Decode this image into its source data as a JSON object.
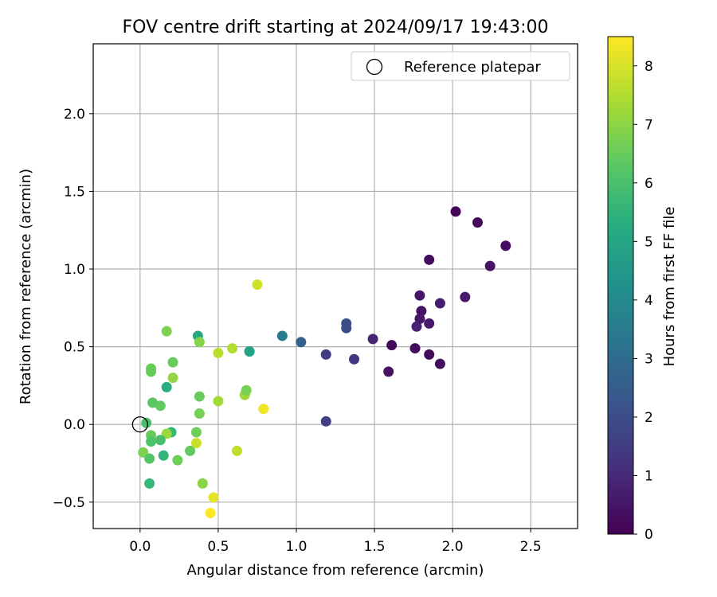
{
  "chart_data": {
    "type": "scatter",
    "title": "FOV centre drift starting at 2024/09/17 19:43:00",
    "xlabel": "Angular distance from reference (arcmin)",
    "ylabel": "Rotation from reference (arcmin)",
    "xlim": [
      -0.3,
      2.8
    ],
    "ylim": [
      -0.67,
      2.45
    ],
    "xticks": [
      0.0,
      0.5,
      1.0,
      1.5,
      2.0,
      2.5
    ],
    "xtick_labels": [
      "0.0",
      "0.5",
      "1.0",
      "1.5",
      "2.0",
      "2.5"
    ],
    "yticks": [
      -0.5,
      0.0,
      0.5,
      1.0,
      1.5,
      2.0
    ],
    "ytick_labels": [
      "−0.5",
      "0.0",
      "0.5",
      "1.0",
      "1.5",
      "2.0"
    ],
    "grid": true,
    "legend": {
      "position": "top-right",
      "entries": [
        "Reference platepar"
      ]
    },
    "reference_point": {
      "name": "Reference platepar",
      "x": 0.0,
      "y": 0.0,
      "marker": "open-circle"
    },
    "colorbar": {
      "label": "Hours from first FF file",
      "colormap": "viridis",
      "range": [
        0,
        8.5
      ],
      "ticks": [
        0,
        1,
        2,
        3,
        4,
        5,
        6,
        7,
        8
      ],
      "tick_labels": [
        "0",
        "1",
        "2",
        "3",
        "4",
        "5",
        "6",
        "7",
        "8"
      ]
    },
    "points": [
      {
        "x": 2.02,
        "y": 1.37,
        "hours": 0.1
      },
      {
        "x": 2.16,
        "y": 1.3,
        "hours": 0.2
      },
      {
        "x": 2.34,
        "y": 1.15,
        "hours": 0.3
      },
      {
        "x": 2.24,
        "y": 1.02,
        "hours": 0.4
      },
      {
        "x": 1.85,
        "y": 1.06,
        "hours": 0.3
      },
      {
        "x": 1.79,
        "y": 0.83,
        "hours": 0.5
      },
      {
        "x": 2.08,
        "y": 0.82,
        "hours": 0.6
      },
      {
        "x": 1.92,
        "y": 0.78,
        "hours": 0.7
      },
      {
        "x": 1.8,
        "y": 0.73,
        "hours": 0.4
      },
      {
        "x": 1.79,
        "y": 0.68,
        "hours": 0.5
      },
      {
        "x": 1.85,
        "y": 0.65,
        "hours": 0.6
      },
      {
        "x": 1.77,
        "y": 0.63,
        "hours": 0.8
      },
      {
        "x": 1.49,
        "y": 0.55,
        "hours": 0.9
      },
      {
        "x": 1.61,
        "y": 0.51,
        "hours": 0.2
      },
      {
        "x": 1.76,
        "y": 0.49,
        "hours": 0.3
      },
      {
        "x": 1.85,
        "y": 0.45,
        "hours": 0.2
      },
      {
        "x": 1.92,
        "y": 0.39,
        "hours": 0.3
      },
      {
        "x": 1.59,
        "y": 0.34,
        "hours": 0.4
      },
      {
        "x": 1.37,
        "y": 0.42,
        "hours": 1.3
      },
      {
        "x": 1.19,
        "y": 0.45,
        "hours": 1.5
      },
      {
        "x": 1.32,
        "y": 0.62,
        "hours": 1.9
      },
      {
        "x": 1.32,
        "y": 0.65,
        "hours": 2.0
      },
      {
        "x": 1.19,
        "y": 0.02,
        "hours": 1.6
      },
      {
        "x": 1.03,
        "y": 0.53,
        "hours": 2.6
      },
      {
        "x": 0.91,
        "y": 0.57,
        "hours": 3.5
      },
      {
        "x": 0.7,
        "y": 0.47,
        "hours": 4.7
      },
      {
        "x": 0.37,
        "y": 0.57,
        "hours": 5.1
      },
      {
        "x": 0.38,
        "y": 0.53,
        "hours": 6.9
      },
      {
        "x": 0.17,
        "y": 0.6,
        "hours": 6.8
      },
      {
        "x": 0.07,
        "y": 0.36,
        "hours": 6.6
      },
      {
        "x": 0.07,
        "y": 0.34,
        "hours": 6.5
      },
      {
        "x": 0.21,
        "y": 0.4,
        "hours": 6.5
      },
      {
        "x": 0.21,
        "y": 0.3,
        "hours": 7.1
      },
      {
        "x": 0.17,
        "y": 0.24,
        "hours": 5.3
      },
      {
        "x": 0.08,
        "y": 0.14,
        "hours": 6.3
      },
      {
        "x": 0.13,
        "y": 0.12,
        "hours": 6.4
      },
      {
        "x": 0.04,
        "y": 0.01,
        "hours": 6.0
      },
      {
        "x": 0.2,
        "y": -0.05,
        "hours": 5.7
      },
      {
        "x": 0.17,
        "y": -0.06,
        "hours": 7.2
      },
      {
        "x": 0.07,
        "y": -0.07,
        "hours": 6.5
      },
      {
        "x": 0.13,
        "y": -0.1,
        "hours": 6.0
      },
      {
        "x": 0.07,
        "y": -0.11,
        "hours": 6.1
      },
      {
        "x": 0.02,
        "y": -0.18,
        "hours": 6.8
      },
      {
        "x": 0.06,
        "y": -0.22,
        "hours": 6.2
      },
      {
        "x": 0.15,
        "y": -0.2,
        "hours": 5.6
      },
      {
        "x": 0.24,
        "y": -0.23,
        "hours": 6.6
      },
      {
        "x": 0.06,
        "y": -0.38,
        "hours": 5.7
      },
      {
        "x": 0.32,
        "y": -0.17,
        "hours": 6.4
      },
      {
        "x": 0.36,
        "y": -0.05,
        "hours": 6.6
      },
      {
        "x": 0.38,
        "y": 0.07,
        "hours": 6.7
      },
      {
        "x": 0.38,
        "y": 0.18,
        "hours": 6.5
      },
      {
        "x": 0.4,
        "y": -0.38,
        "hours": 7.0
      },
      {
        "x": 0.36,
        "y": -0.12,
        "hours": 7.8
      },
      {
        "x": 0.47,
        "y": -0.47,
        "hours": 8.2
      },
      {
        "x": 0.45,
        "y": -0.57,
        "hours": 8.5
      },
      {
        "x": 0.5,
        "y": 0.15,
        "hours": 7.3
      },
      {
        "x": 0.5,
        "y": 0.46,
        "hours": 7.6
      },
      {
        "x": 0.59,
        "y": 0.49,
        "hours": 7.5
      },
      {
        "x": 0.67,
        "y": 0.19,
        "hours": 7.2
      },
      {
        "x": 0.68,
        "y": 0.22,
        "hours": 6.7
      },
      {
        "x": 0.62,
        "y": -0.17,
        "hours": 7.7
      },
      {
        "x": 0.7,
        "y": 0.47,
        "hours": 4.9
      },
      {
        "x": 0.75,
        "y": 0.9,
        "hours": 7.9
      },
      {
        "x": 0.79,
        "y": 0.1,
        "hours": 8.3
      }
    ]
  }
}
